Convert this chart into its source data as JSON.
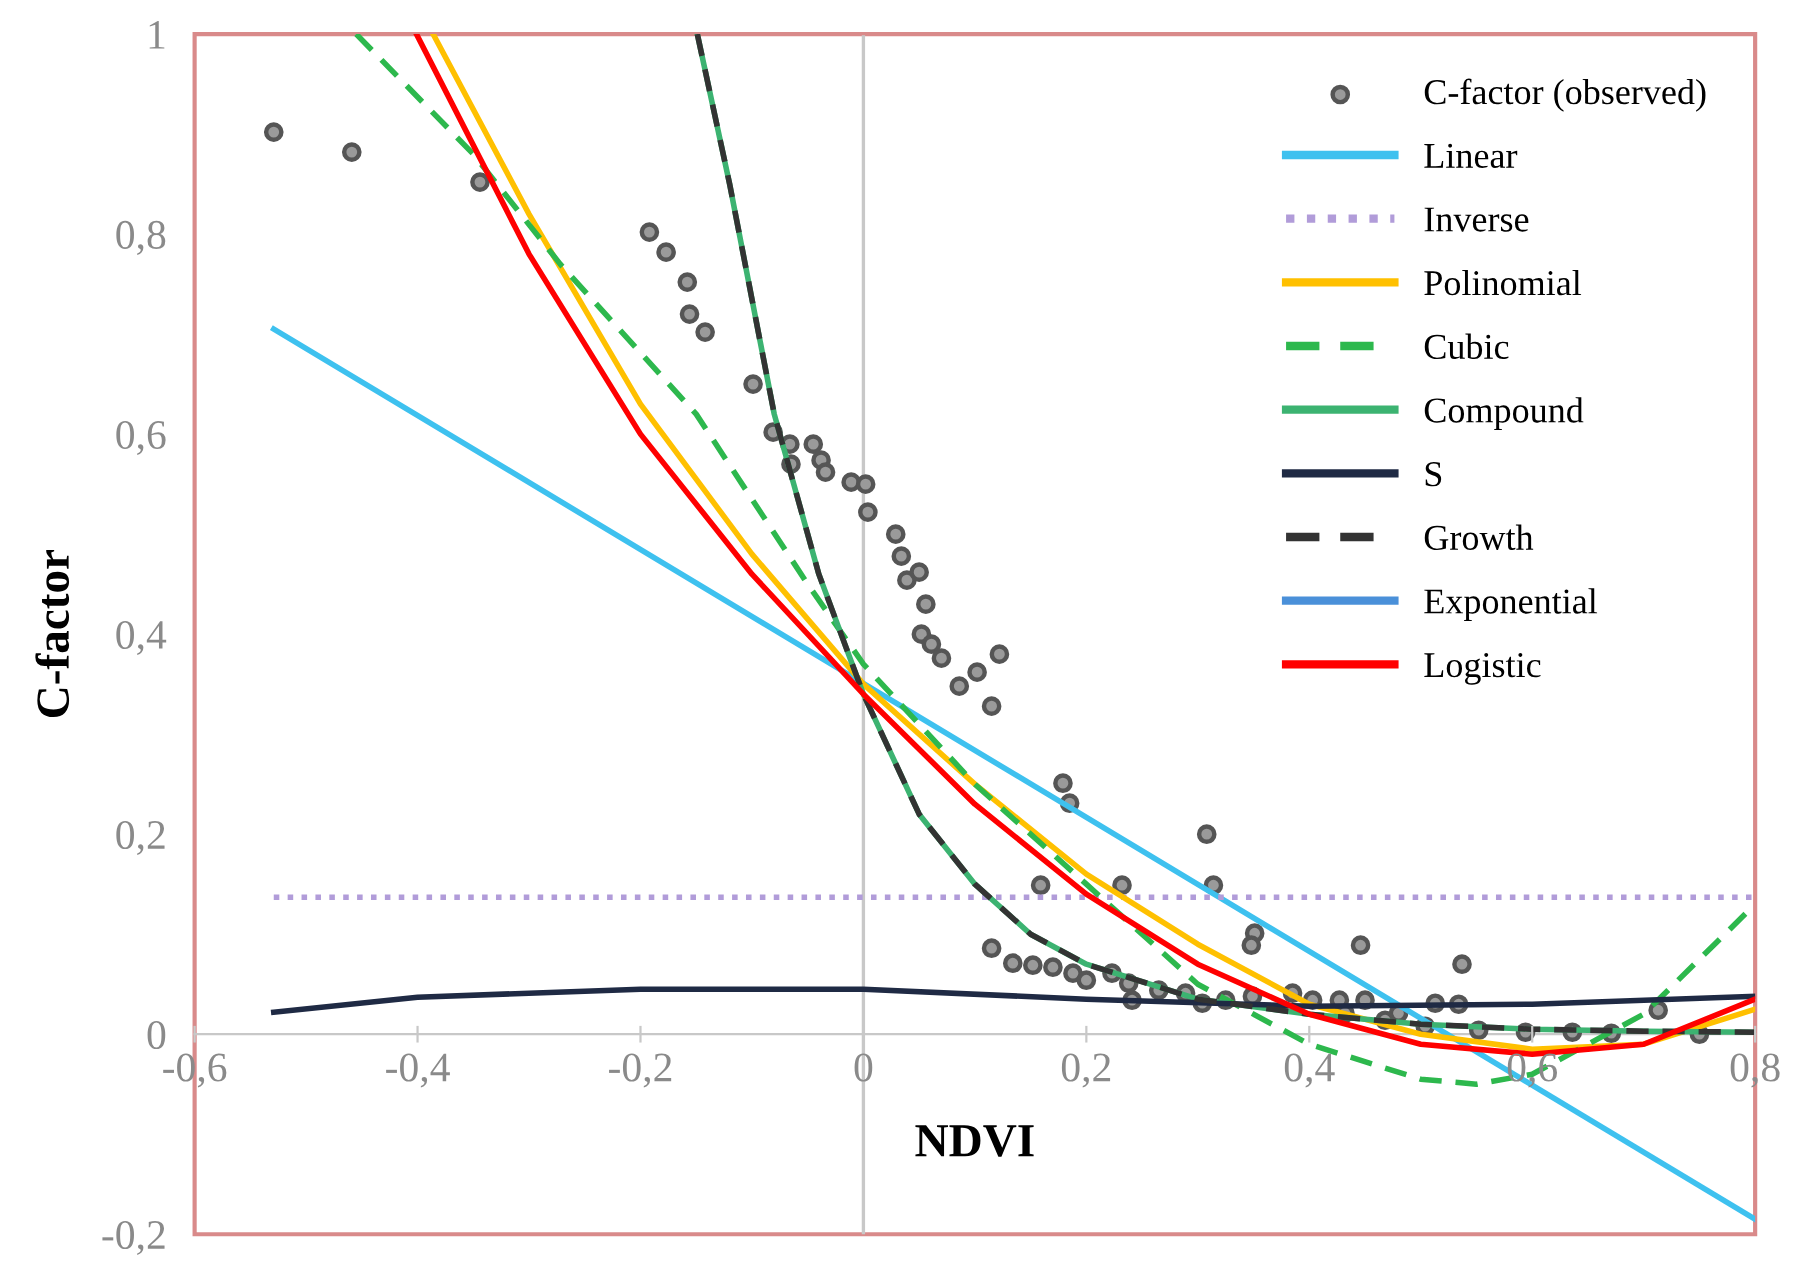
{
  "chart_data": {
    "type": "line",
    "xlabel": "NDVI",
    "ylabel": "C-factor",
    "xlim": [
      -0.6,
      0.8
    ],
    "ylim": [
      -0.2,
      1
    ],
    "xticks": [
      {
        "value": -0.6,
        "label": "-0,6"
      },
      {
        "value": -0.4,
        "label": "-0,4"
      },
      {
        "value": -0.2,
        "label": "-0,2"
      },
      0,
      {
        "value": 0.2,
        "label": "0,2"
      },
      {
        "value": 0.4,
        "label": "0,4"
      },
      {
        "value": 0.6,
        "label": "0,6"
      },
      {
        "value": 0.8,
        "label": "0,8"
      }
    ],
    "yticks": [
      {
        "value": -0.2,
        "label": "-0,2"
      },
      0,
      {
        "value": 0.2,
        "label": "0,2"
      },
      {
        "value": 0.4,
        "label": "0,4"
      },
      {
        "value": 0.6,
        "label": "0,6"
      },
      {
        "value": 0.8,
        "label": "0,8"
      },
      1
    ],
    "grid": false,
    "legend": "top right",
    "ref_lines": [
      {
        "axis": "x",
        "value": 0,
        "label": null,
        "color": "#c8c8c8"
      }
    ],
    "series": [
      {
        "name": "C-factor (observed)",
        "type": "scatter",
        "marker": "circle",
        "color": "#555555",
        "x": [
          -0.529,
          -0.459,
          -0.344,
          -0.192,
          -0.177,
          -0.158,
          -0.156,
          -0.142,
          -0.099,
          -0.081,
          -0.066,
          -0.065,
          -0.045,
          -0.038,
          -0.034,
          -0.011,
          0.002,
          0.004,
          0.029,
          0.034,
          0.039,
          0.05,
          0.056,
          0.052,
          0.061,
          0.07,
          0.086,
          0.102,
          0.122,
          0.115,
          0.179,
          0.185,
          0.159,
          0.232,
          0.308,
          0.314,
          0.351,
          0.348,
          0.446,
          0.537,
          0.713,
          0.115,
          0.134,
          0.152,
          0.17,
          0.188,
          0.2,
          0.223,
          0.238,
          0.241,
          0.265,
          0.289,
          0.304,
          0.325,
          0.349,
          0.385,
          0.403,
          0.427,
          0.45,
          0.48,
          0.513,
          0.534,
          0.504,
          0.552,
          0.594,
          0.636,
          0.671,
          0.75,
          0.432,
          0.468
        ],
        "values": [
          0.902,
          0.882,
          0.852,
          0.802,
          0.782,
          0.752,
          0.72,
          0.702,
          0.65,
          0.602,
          0.59,
          0.57,
          0.59,
          0.574,
          0.562,
          0.552,
          0.55,
          0.522,
          0.5,
          0.478,
          0.454,
          0.462,
          0.43,
          0.4,
          0.39,
          0.376,
          0.348,
          0.362,
          0.38,
          0.328,
          0.251,
          0.231,
          0.149,
          0.149,
          0.2,
          0.149,
          0.101,
          0.089,
          0.089,
          0.07,
          0.024,
          0.086,
          0.071,
          0.069,
          0.067,
          0.061,
          0.054,
          0.061,
          0.051,
          0.034,
          0.044,
          0.041,
          0.031,
          0.034,
          0.038,
          0.041,
          0.034,
          0.034,
          0.034,
          0.021,
          0.031,
          0.03,
          0.008,
          0.004,
          0.002,
          0.002,
          0.001,
          0.0,
          0.021,
          0.014
        ]
      },
      {
        "name": "Linear",
        "line_style": "solid",
        "color": "#3ec1ef",
        "x": [
          -0.529,
          0.8
        ],
        "values": [
          0.705,
          -0.185
        ]
      },
      {
        "name": "Inverse",
        "line_style": "dotted",
        "color": "#b19cd9",
        "x": [
          -0.529,
          0.8
        ],
        "values": [
          0.137,
          0.137
        ]
      },
      {
        "name": "Polinomial",
        "line_style": "solid",
        "color": "#ffc000",
        "x": [
          -0.386,
          -0.3,
          -0.2,
          -0.1,
          0,
          0.1,
          0.2,
          0.3,
          0.4,
          0.5,
          0.6,
          0.7,
          0.8
        ],
        "values": [
          1,
          0.82,
          0.63,
          0.48,
          0.35,
          0.25,
          0.16,
          0.09,
          0.03,
          0.0,
          -0.015,
          -0.01,
          0.025
        ]
      },
      {
        "name": "Cubic",
        "line_style": "dashed",
        "color": "#2db84d",
        "x": [
          -0.455,
          -0.35,
          -0.272,
          -0.15,
          -0.05,
          0,
          0.1,
          0.2,
          0.3,
          0.4,
          0.5,
          0.55,
          0.6,
          0.7,
          0.8
        ],
        "values": [
          1,
          0.88,
          0.77,
          0.62,
          0.45,
          0.37,
          0.25,
          0.15,
          0.05,
          -0.01,
          -0.045,
          -0.05,
          -0.04,
          0.02,
          0.13
        ]
      },
      {
        "name": "Compound",
        "line_style": "solid",
        "color": "#3cb371",
        "x": [
          -0.149,
          -0.12,
          -0.08,
          -0.04,
          0,
          0.05,
          0.1,
          0.15,
          0.2,
          0.3,
          0.4,
          0.5,
          0.6,
          0.7,
          0.8
        ],
        "values": [
          1,
          0.85,
          0.62,
          0.46,
          0.34,
          0.22,
          0.15,
          0.1,
          0.07,
          0.035,
          0.02,
          0.01,
          0.005,
          0.003,
          0.002
        ]
      },
      {
        "name": "S",
        "line_style": "solid",
        "color": "#1f2a44",
        "x": [
          -0.529,
          -0.4,
          -0.2,
          0,
          0.2,
          0.4,
          0.6,
          0.8
        ],
        "values": [
          0.022,
          0.037,
          0.045,
          0.045,
          0.035,
          0.028,
          0.03,
          0.038
        ]
      },
      {
        "name": "Growth",
        "line_style": "dashed",
        "color": "#333333",
        "x": [
          -0.149,
          -0.12,
          -0.08,
          -0.04,
          0,
          0.05,
          0.1,
          0.15,
          0.2,
          0.3,
          0.4,
          0.5,
          0.6,
          0.7,
          0.8
        ],
        "values": [
          1,
          0.85,
          0.62,
          0.46,
          0.34,
          0.22,
          0.15,
          0.1,
          0.07,
          0.035,
          0.02,
          0.01,
          0.005,
          0.003,
          0.002
        ]
      },
      {
        "name": "Exponential",
        "line_style": "solid",
        "color": "#4a90d9"
      },
      {
        "name": "Logistic",
        "line_style": "solid",
        "color": "#ff0000",
        "x": [
          -0.401,
          -0.3,
          -0.2,
          -0.1,
          0,
          0.1,
          0.2,
          0.3,
          0.4,
          0.5,
          0.6,
          0.7,
          0.8
        ],
        "values": [
          1,
          0.78,
          0.6,
          0.46,
          0.34,
          0.23,
          0.14,
          0.07,
          0.02,
          -0.01,
          -0.02,
          -0.01,
          0.035
        ]
      }
    ]
  }
}
